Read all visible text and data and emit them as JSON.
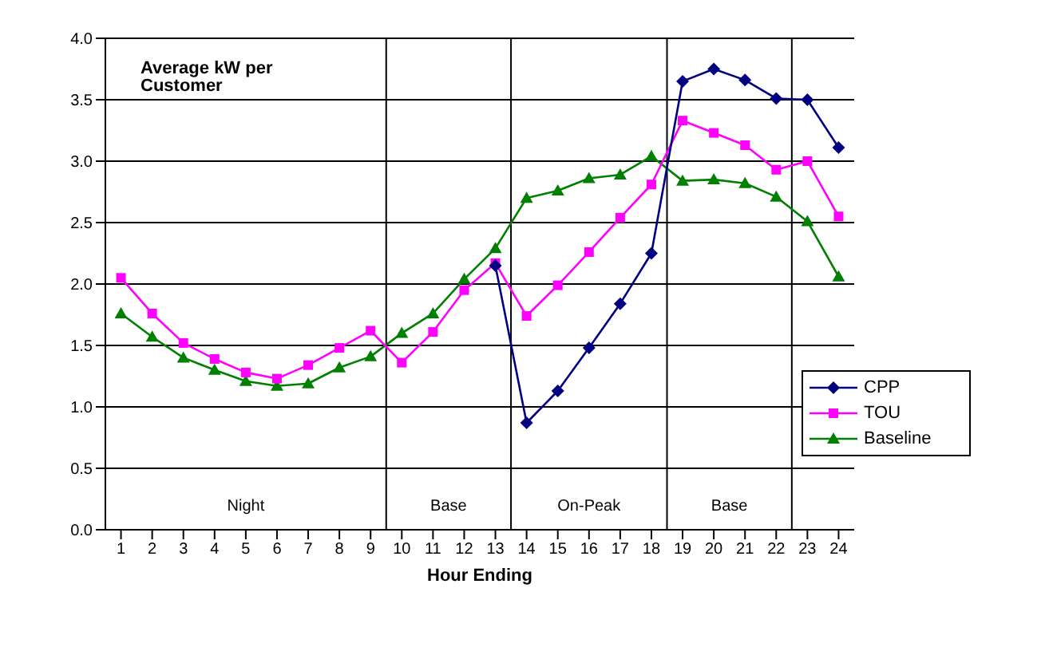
{
  "chart_data": {
    "type": "line",
    "ylabel": "Average kW per Customer",
    "xlabel": "Hour Ending",
    "x": [
      1,
      2,
      3,
      4,
      5,
      6,
      7,
      8,
      9,
      10,
      11,
      12,
      13,
      14,
      15,
      16,
      17,
      18,
      19,
      20,
      21,
      22,
      23,
      24
    ],
    "xlim": [
      0.5,
      24.5
    ],
    "xticks": [
      1,
      2,
      3,
      4,
      5,
      6,
      7,
      8,
      9,
      10,
      11,
      12,
      13,
      14,
      15,
      16,
      17,
      18,
      19,
      20,
      21,
      22,
      23,
      24
    ],
    "ylim": [
      0,
      4
    ],
    "yticks": [
      {
        "value": 0,
        "label": "0.0"
      },
      {
        "value": 0.5,
        "label": "0.5"
      },
      {
        "value": 1,
        "label": "1.0"
      },
      {
        "value": 1.5,
        "label": "1.5"
      },
      {
        "value": 2,
        "label": "2.0"
      },
      {
        "value": 2.5,
        "label": "2.5"
      },
      {
        "value": 3,
        "label": "3.0"
      },
      {
        "value": 3.5,
        "label": "3.5"
      },
      {
        "value": 4,
        "label": "4.0"
      }
    ],
    "series": [
      {
        "name": "CPP",
        "color": "#000080",
        "marker": "diamond",
        "values": [
          null,
          null,
          null,
          null,
          null,
          null,
          null,
          null,
          null,
          null,
          null,
          null,
          2.15,
          0.87,
          1.13,
          1.48,
          1.84,
          2.25,
          3.65,
          3.75,
          3.66,
          3.51,
          3.5,
          3.11
        ]
      },
      {
        "name": "TOU",
        "color": "#ff00ff",
        "marker": "square",
        "values": [
          2.05,
          1.76,
          1.52,
          1.39,
          1.28,
          1.23,
          1.34,
          1.48,
          1.62,
          1.36,
          1.61,
          1.95,
          2.17,
          1.74,
          1.99,
          2.26,
          2.54,
          2.81,
          3.33,
          3.23,
          3.13,
          2.93,
          3.0,
          2.55
        ]
      },
      {
        "name": "Baseline",
        "color": "#008000",
        "marker": "triangle",
        "values": [
          1.76,
          1.57,
          1.4,
          1.3,
          1.21,
          1.17,
          1.19,
          1.32,
          1.41,
          1.6,
          1.76,
          2.04,
          2.29,
          2.7,
          2.76,
          2.86,
          2.89,
          3.04,
          2.84,
          2.85,
          2.82,
          2.71,
          2.51,
          2.06
        ]
      }
    ],
    "ref_lines": [
      {
        "axis": "x",
        "value": 9.5
      },
      {
        "axis": "x",
        "value": 13.5
      },
      {
        "axis": "x",
        "value": 18.5
      },
      {
        "axis": "x",
        "value": 22.5
      }
    ],
    "annotations": [
      "Night",
      "Base",
      "On-Peak",
      "Base"
    ],
    "grid": "y",
    "legend": "right"
  }
}
